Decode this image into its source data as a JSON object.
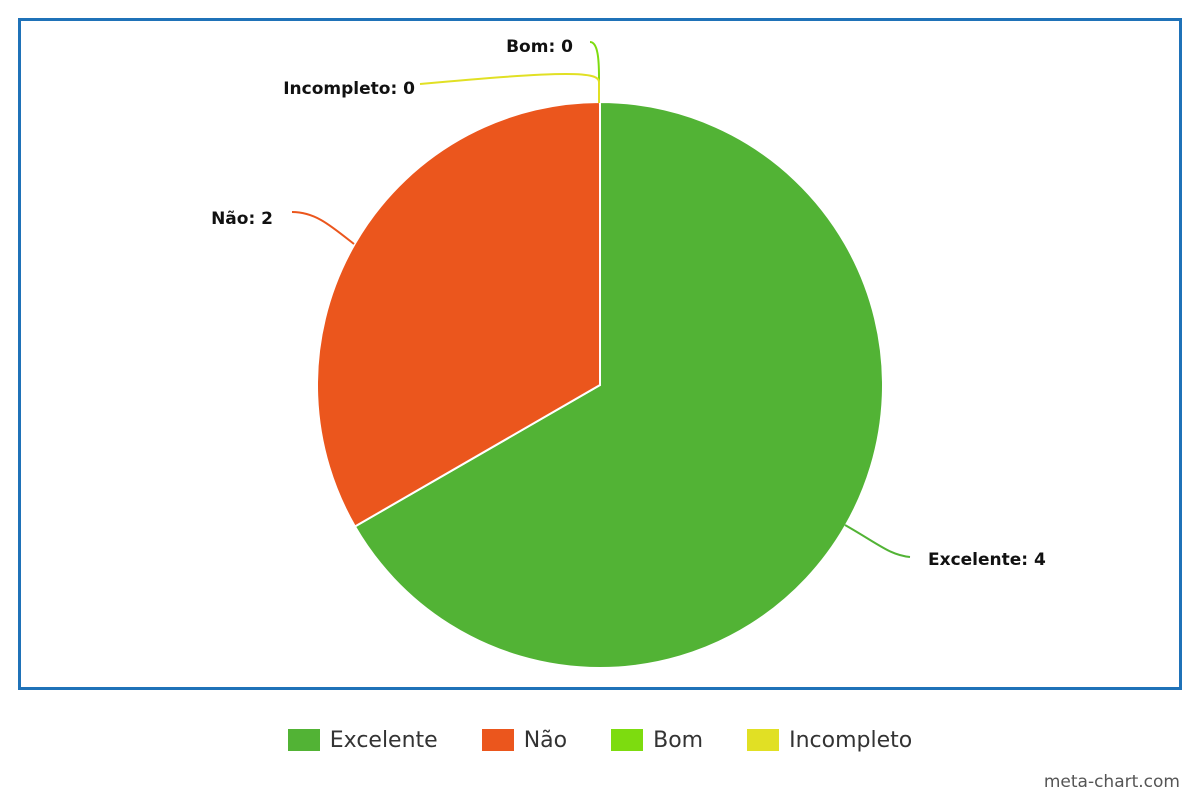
{
  "chart_data": {
    "type": "pie",
    "slices": [
      {
        "label": "Excelente",
        "value": 4,
        "color": "#52b335",
        "data_label": "Excelente: 4"
      },
      {
        "label": "Não",
        "value": 2,
        "color": "#eb561d",
        "data_label": "Não: 2"
      },
      {
        "label": "Bom",
        "value": 0,
        "color": "#7ddc0f",
        "data_label": "Bom: 0"
      },
      {
        "label": "Incompleto",
        "value": 0,
        "color": "#e1e024",
        "data_label": "Incompleto: 0"
      }
    ],
    "legend_position": "bottom",
    "start_angle_deg": 0,
    "direction": "clockwise"
  },
  "frame": {
    "border_color": "#1f72b8"
  },
  "watermark": "meta-chart.com"
}
